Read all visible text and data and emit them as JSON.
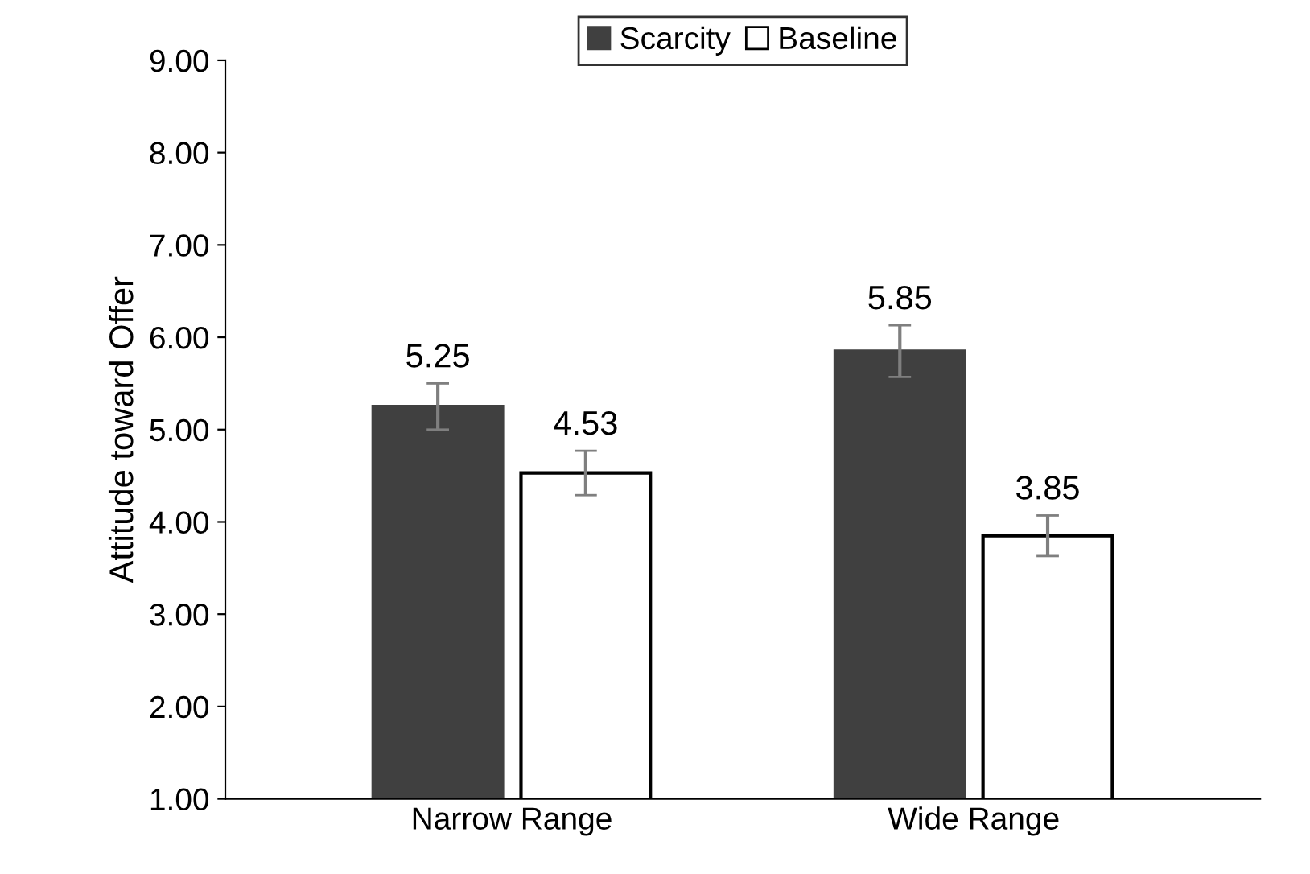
{
  "chart_data": {
    "type": "bar",
    "ylabel": "Attitude toward Offer",
    "categories": [
      "Narrow Range",
      "Wide Range"
    ],
    "series": [
      {
        "name": "Scarcity",
        "color": "#404040",
        "values": [
          5.25,
          5.85
        ],
        "errors": [
          0.25,
          0.28
        ]
      },
      {
        "name": "Baseline",
        "color": "#ffffff",
        "values": [
          4.53,
          3.85
        ],
        "errors": [
          0.24,
          0.22
        ]
      }
    ],
    "ylim": [
      1,
      9
    ],
    "yticks": [
      {
        "value": 1,
        "label": "1.00"
      },
      {
        "value": 2,
        "label": "2.00"
      },
      {
        "value": 3,
        "label": "3.00"
      },
      {
        "value": 4,
        "label": "4.00"
      },
      {
        "value": 5,
        "label": "5.00"
      },
      {
        "value": 6,
        "label": "6.00"
      },
      {
        "value": 7,
        "label": "7.00"
      },
      {
        "value": 8,
        "label": "8.00"
      },
      {
        "value": 9,
        "label": "9.00"
      }
    ],
    "data_labels": true,
    "grid": false,
    "legend": "top"
  }
}
